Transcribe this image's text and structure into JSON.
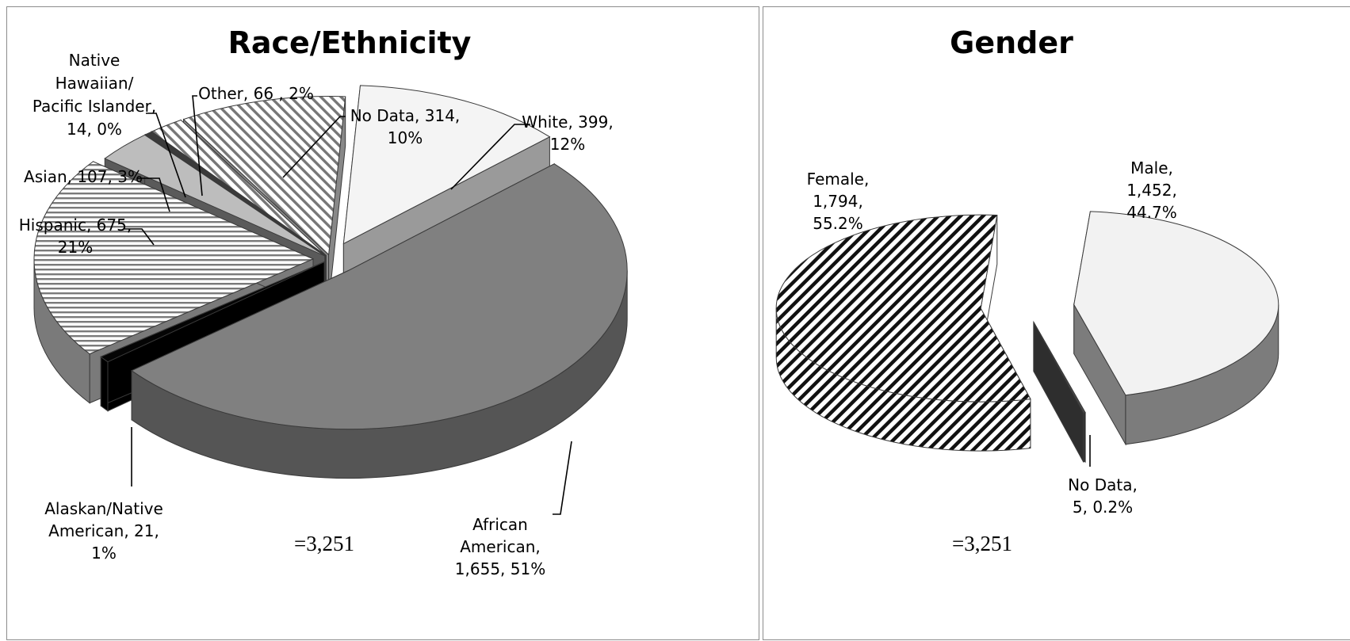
{
  "chart_data": [
    {
      "type": "pie",
      "title": "Race/Ethnicity",
      "total_label": "=3,251",
      "slices": [
        {
          "name": "White",
          "value": 399,
          "percent": "12%",
          "label_lines": [
            "White,  399,",
            "12%"
          ],
          "fill": "#f4f4f4",
          "side": "#9a9a9a",
          "pattern": "none"
        },
        {
          "name": "African American",
          "value": 1655,
          "percent": "51%",
          "label_lines": [
            "African",
            "American,",
            "1,655, 51%"
          ],
          "fill": "#808080",
          "side": "#555555",
          "pattern": "none"
        },
        {
          "name": "Alaskan/Native American",
          "value": 21,
          "percent": "1%",
          "label_lines": [
            "Alaskan/Native",
            "American,  21,",
            "1%"
          ],
          "fill": "#050505",
          "side": "#000000",
          "pattern": "none"
        },
        {
          "name": "Hispanic",
          "value": 675,
          "percent": "21%",
          "label_lines": [
            "Hispanic,  675,",
            "21%"
          ],
          "fill": "#ffffff",
          "side": "#7a7a7a",
          "pattern": "hstripe"
        },
        {
          "name": "Asian",
          "value": 107,
          "percent": "3%",
          "label_lines": [
            "Asian,  107, 3%"
          ],
          "fill": "#bdbdbd",
          "side": "#5a5a5a",
          "pattern": "none"
        },
        {
          "name": "Native Hawaiian/ Pacific Islander",
          "value": 14,
          "percent": "0%",
          "label_lines": [
            "Native",
            "Hawaiian/",
            "Pacific Islander,",
            "14, 0%"
          ],
          "fill": "#3a3a3a",
          "side": "#222222",
          "pattern": "none"
        },
        {
          "name": "Other",
          "value": 66,
          "percent": "2%",
          "label_lines": [
            "Other,  66 , 2%"
          ],
          "fill": "#ffffff",
          "side": "#777777",
          "pattern": "dstripe"
        },
        {
          "name": "No Data",
          "value": 314,
          "percent": "10%",
          "label_lines": [
            "No Data,  314,",
            "10%"
          ],
          "fill": "#ffffff",
          "side": "#888888",
          "pattern": "dstripe"
        }
      ]
    },
    {
      "type": "pie",
      "title": "Gender",
      "total_label": "=3,251",
      "slices": [
        {
          "name": "Male",
          "value": 1452,
          "percent": "44.7%",
          "label_lines": [
            "Male,",
            "1,452,",
            "44.7%"
          ],
          "fill": "#f2f2f2",
          "side": "#7c7c7c",
          "pattern": "none"
        },
        {
          "name": "No Data",
          "value": 5,
          "percent": "0.2%",
          "label_lines": [
            "No Data,",
            "5, 0.2%"
          ],
          "fill": "#4a4a4a",
          "side": "#2e2e2e",
          "pattern": "none"
        },
        {
          "name": "Female",
          "value": 1794,
          "percent": "55.2%",
          "label_lines": [
            "Female,",
            "1,794,",
            "55.2%"
          ],
          "fill": "#ffffff",
          "side": "#ffffff",
          "pattern": "bstripe"
        }
      ]
    }
  ]
}
